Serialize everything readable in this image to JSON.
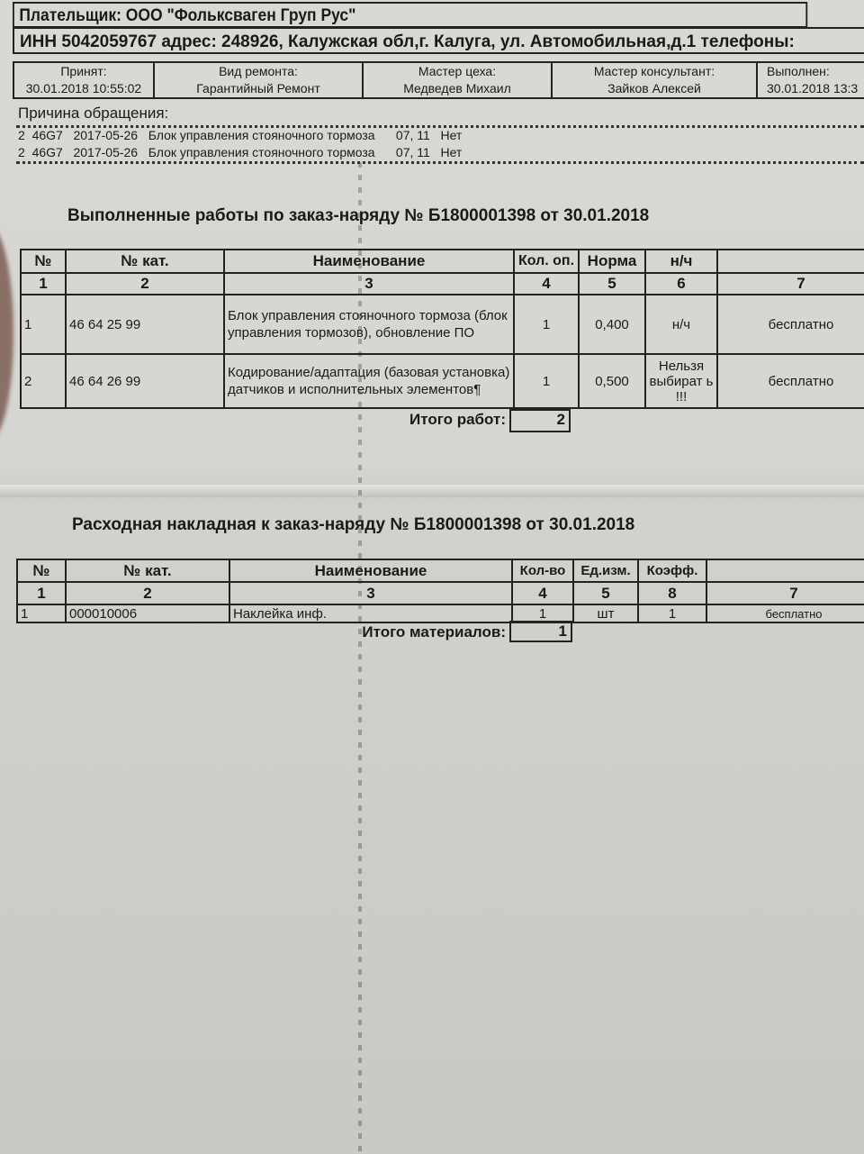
{
  "payer": "Плательщик:  ООО \"Фольксваген  Груп Рус\"",
  "inn_line": "ИНН 5042059767   адрес: 248926, Калужская обл,г. Калуга, ул. Автомобильная,д.1   телефоны:",
  "info": [
    {
      "label": "Принят:",
      "value": "30.01.2018 10:55:02"
    },
    {
      "label": "Вид ремонта:",
      "value": "Гарантийный Ремонт"
    },
    {
      "label": "Мастер цеха:",
      "value": "Медведев Михаил"
    },
    {
      "label": "Мастер консультант:",
      "value": "Зайков Алексей"
    },
    {
      "label": "Выполнен:",
      "value": "30.01.2018 13:3"
    }
  ],
  "reason": {
    "label": "Причина обращения:",
    "rows": [
      "2  46G7   2017-05-26   Блок управления стояночного тормоза      07, 11   Нет",
      "2  46G7   2017-05-26   Блок управления стояночного тормоза      07, 11   Нет"
    ]
  },
  "works": {
    "title": "Выполненные работы по заказ-наряду №  Б1800001398 от 30.01.2018",
    "headers": [
      "№",
      "№ кат.",
      "Наименование",
      "Кол. оп.",
      "Норма",
      "н/ч",
      ""
    ],
    "col_numbers": [
      "1",
      "2",
      "3",
      "4",
      "5",
      "6",
      "7"
    ],
    "rows": [
      [
        "1",
        "46 64 25 99",
        "Блок управления стояночного тормоза (блок управления тормозов), обновление ПО",
        "1",
        "0,400",
        "н/ч",
        "бесплатно"
      ],
      [
        "2",
        "46 64 26 99",
        "Кодирование/адаптация (базовая установка) датчиков и исполнительных элементов¶",
        "1",
        "0,500",
        "Нельзя выбират ь !!!",
        "бесплатно"
      ]
    ],
    "total_label": "Итого работ:",
    "total_value": "2"
  },
  "materials": {
    "title": "Расходная накладная к заказ-наряду №  Б1800001398 от 30.01.2018",
    "headers": [
      "№",
      "№ кат.",
      "Наименование",
      "Кол-во",
      "Ед.изм.",
      "Коэфф.",
      ""
    ],
    "col_numbers": [
      "1",
      "2",
      "3",
      "4",
      "5",
      "8",
      "7"
    ],
    "rows": [
      [
        "1",
        "000010006",
        "Наклейка инф.",
        "1",
        "шт",
        "1",
        "бесплатно"
      ]
    ],
    "total_label": "Итого материалов:",
    "total_value": "1"
  }
}
